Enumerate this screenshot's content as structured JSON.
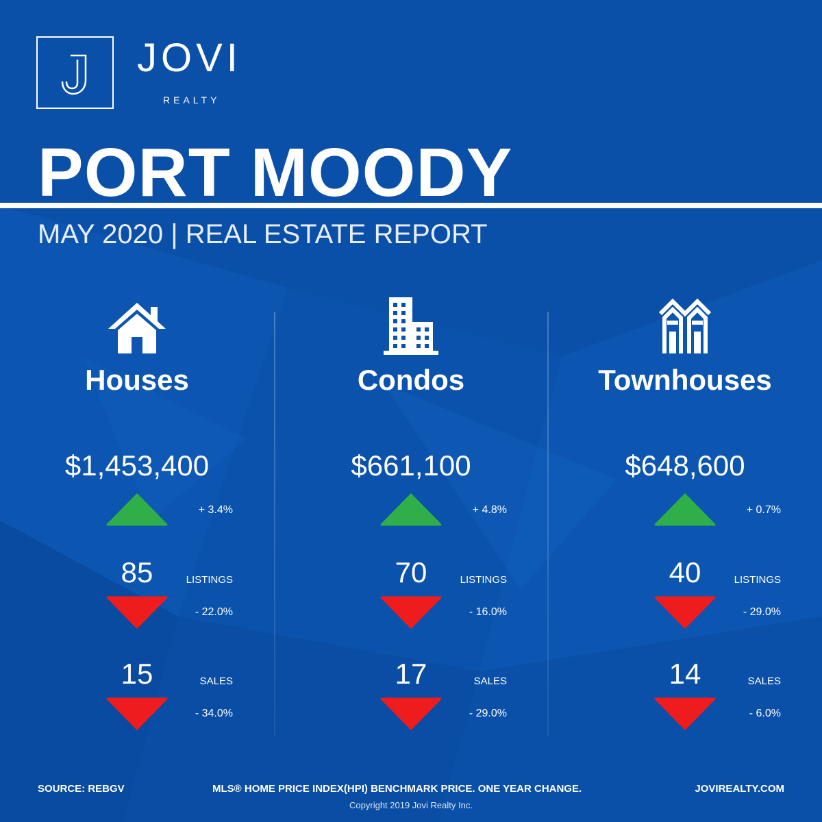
{
  "brand": {
    "name": "JOVI",
    "sub": "REALTY"
  },
  "title": "PORT MOODY",
  "subtitle": "MAY 2020 | REAL ESTATE REPORT",
  "colors": {
    "background": "#0a4fa8",
    "up": "#2fae49",
    "down": "#ee1c1c",
    "text": "#ffffff"
  },
  "columns": [
    {
      "icon": "house-icon",
      "category": "Houses",
      "price": "$1,453,400",
      "price_change": "+ 3.4%",
      "price_direction": "up",
      "listings": "85",
      "listings_label": "LISTINGS",
      "listings_change": "- 22.0%",
      "listings_direction": "down",
      "sales": "15",
      "sales_label": "SALES",
      "sales_change": "- 34.0%",
      "sales_direction": "down"
    },
    {
      "icon": "condo-building-icon",
      "category": "Condos",
      "price": "$661,100",
      "price_change": "+ 4.8%",
      "price_direction": "up",
      "listings": "70",
      "listings_label": "LISTINGS",
      "listings_change": "- 16.0%",
      "listings_direction": "down",
      "sales": "17",
      "sales_label": "SALES",
      "sales_change": "- 29.0%",
      "sales_direction": "down"
    },
    {
      "icon": "townhouse-icon",
      "category": "Townhouses",
      "price": "$648,600",
      "price_change": "+ 0.7%",
      "price_direction": "up",
      "listings": "40",
      "listings_label": "LISTINGS",
      "listings_change": "- 29.0%",
      "listings_direction": "down",
      "sales": "14",
      "sales_label": "SALES",
      "sales_change": "- 6.0%",
      "sales_direction": "down"
    }
  ],
  "footer": {
    "source": "SOURCE:  REBGV",
    "note": "MLS® HOME PRICE INDEX(HPI) BENCHMARK PRICE. ONE YEAR CHANGE.",
    "website": "JOVIREALTY.COM",
    "copyright": "Copyright 2019 Jovi Realty Inc."
  }
}
